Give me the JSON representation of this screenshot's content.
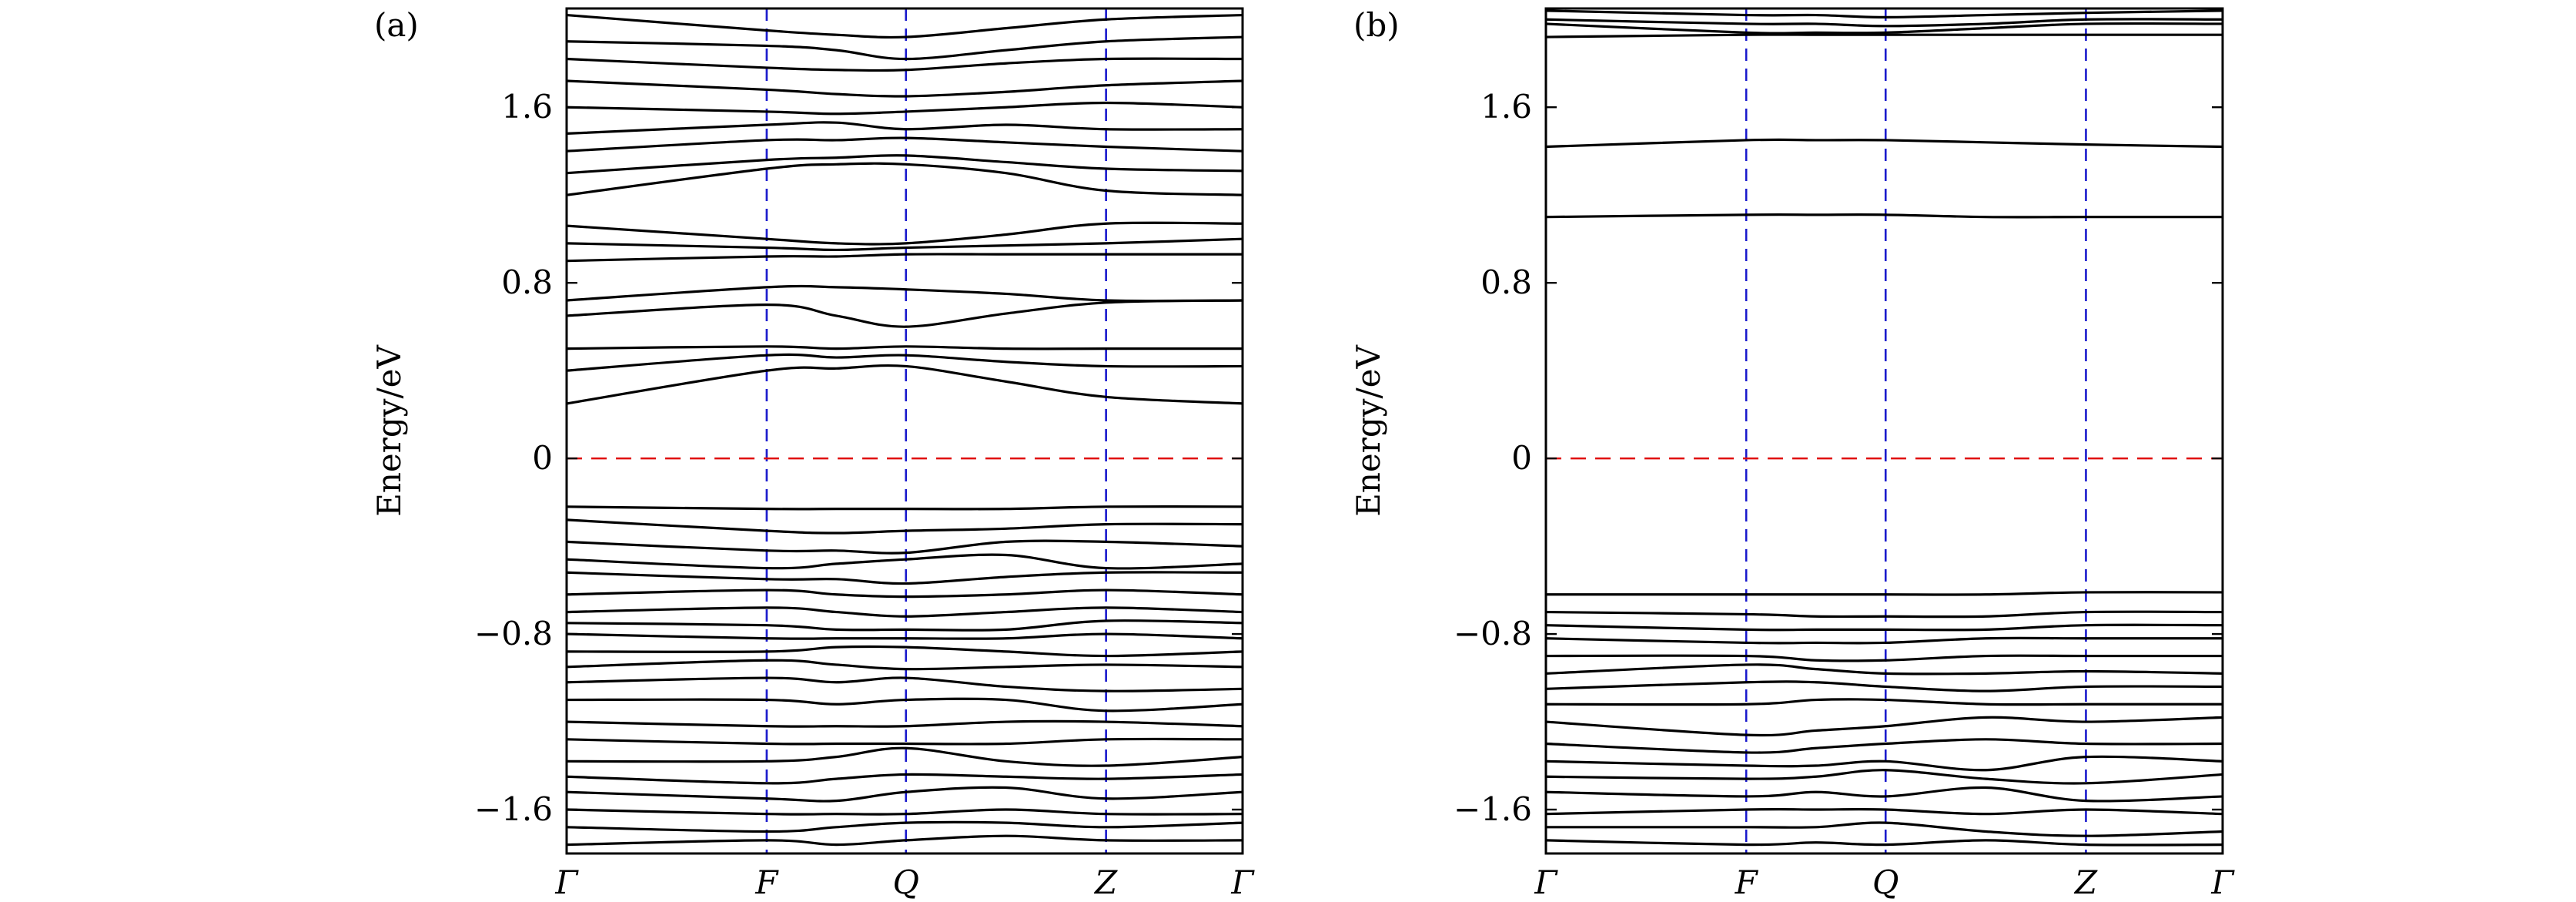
{
  "chart_data": [
    {
      "type": "line",
      "title": "(a)",
      "ylabel": "Energy/eV",
      "color": "#000000",
      "x": [
        0,
        0.296,
        0.399,
        0.502,
        0.65,
        0.798,
        1
      ],
      "xlim": [
        0,
        1
      ],
      "xticks": [
        {
          "value": 0,
          "label": "Γ"
        },
        {
          "value": 0.296,
          "label": "F"
        },
        {
          "value": 0.502,
          "label": "Q"
        },
        {
          "value": 0.798,
          "label": "Z"
        },
        {
          "value": 1,
          "label": "Γ"
        }
      ],
      "ylim": [
        -1.8,
        2.05
      ],
      "yticks": [
        {
          "value": -1.6,
          "label": "−1.6"
        },
        {
          "value": -0.8,
          "label": "−0.8"
        },
        0,
        0.8,
        1.6
      ],
      "vline_color": "#1a1acc",
      "hline": 0,
      "hline_color": "#e01010",
      "series": [
        {
          "values": [
            0.25,
            0.4,
            0.41,
            0.42,
            0.35,
            0.28,
            0.25
          ]
        },
        {
          "values": [
            0.4,
            0.47,
            0.46,
            0.47,
            0.44,
            0.42,
            0.42
          ]
        },
        {
          "values": [
            0.5,
            0.51,
            0.5,
            0.51,
            0.5,
            0.5,
            0.5
          ]
        },
        {
          "values": [
            0.65,
            0.7,
            0.65,
            0.6,
            0.66,
            0.71,
            0.72
          ]
        },
        {
          "values": [
            0.72,
            0.78,
            0.78,
            0.77,
            0.75,
            0.72,
            0.72
          ]
        },
        {
          "values": [
            0.9,
            0.92,
            0.92,
            0.93,
            0.93,
            0.93,
            0.93
          ]
        },
        {
          "values": [
            0.98,
            0.96,
            0.95,
            0.96,
            0.97,
            0.98,
            1.0
          ]
        },
        {
          "values": [
            1.06,
            1.0,
            0.98,
            0.98,
            1.02,
            1.07,
            1.07
          ]
        },
        {
          "values": [
            1.2,
            1.32,
            1.34,
            1.34,
            1.3,
            1.22,
            1.2
          ]
        },
        {
          "values": [
            1.3,
            1.36,
            1.37,
            1.38,
            1.35,
            1.32,
            1.31
          ]
        },
        {
          "values": [
            1.4,
            1.45,
            1.45,
            1.46,
            1.44,
            1.42,
            1.4
          ]
        },
        {
          "values": [
            1.48,
            1.52,
            1.53,
            1.5,
            1.52,
            1.5,
            1.5
          ]
        },
        {
          "values": [
            1.6,
            1.58,
            1.57,
            1.58,
            1.6,
            1.62,
            1.6
          ]
        },
        {
          "values": [
            1.72,
            1.68,
            1.66,
            1.65,
            1.67,
            1.7,
            1.72
          ]
        },
        {
          "values": [
            1.82,
            1.78,
            1.77,
            1.77,
            1.8,
            1.82,
            1.82
          ]
        },
        {
          "values": [
            1.9,
            1.88,
            1.86,
            1.82,
            1.86,
            1.9,
            1.92
          ]
        },
        {
          "values": [
            2.02,
            1.95,
            1.93,
            1.92,
            1.96,
            2.0,
            2.02
          ]
        },
        {
          "values": [
            -0.22,
            -0.23,
            -0.23,
            -0.23,
            -0.23,
            -0.22,
            -0.22
          ]
        },
        {
          "values": [
            -0.28,
            -0.33,
            -0.34,
            -0.33,
            -0.32,
            -0.3,
            -0.3
          ]
        },
        {
          "values": [
            -0.38,
            -0.42,
            -0.42,
            -0.43,
            -0.38,
            -0.38,
            -0.4
          ]
        },
        {
          "values": [
            -0.46,
            -0.5,
            -0.48,
            -0.46,
            -0.44,
            -0.5,
            -0.48
          ]
        },
        {
          "values": [
            -0.52,
            -0.55,
            -0.55,
            -0.57,
            -0.54,
            -0.52,
            -0.52
          ]
        },
        {
          "values": [
            -0.62,
            -0.6,
            -0.62,
            -0.63,
            -0.62,
            -0.6,
            -0.62
          ]
        },
        {
          "values": [
            -0.7,
            -0.68,
            -0.7,
            -0.72,
            -0.7,
            -0.68,
            -0.7
          ]
        },
        {
          "values": [
            -0.75,
            -0.76,
            -0.78,
            -0.78,
            -0.78,
            -0.74,
            -0.75
          ]
        },
        {
          "values": [
            -0.8,
            -0.82,
            -0.82,
            -0.82,
            -0.82,
            -0.8,
            -0.82
          ]
        },
        {
          "values": [
            -0.88,
            -0.88,
            -0.86,
            -0.86,
            -0.88,
            -0.9,
            -0.88
          ]
        },
        {
          "values": [
            -0.95,
            -0.92,
            -0.94,
            -0.96,
            -0.95,
            -0.94,
            -0.95
          ]
        },
        {
          "values": [
            -1.02,
            -1.0,
            -1.02,
            -1.0,
            -1.04,
            -1.06,
            -1.05
          ]
        },
        {
          "values": [
            -1.1,
            -1.1,
            -1.12,
            -1.1,
            -1.1,
            -1.15,
            -1.12
          ]
        },
        {
          "values": [
            -1.2,
            -1.22,
            -1.22,
            -1.22,
            -1.2,
            -1.2,
            -1.22
          ]
        },
        {
          "values": [
            -1.28,
            -1.3,
            -1.3,
            -1.3,
            -1.3,
            -1.28,
            -1.28
          ]
        },
        {
          "values": [
            -1.38,
            -1.38,
            -1.36,
            -1.32,
            -1.38,
            -1.4,
            -1.36
          ]
        },
        {
          "values": [
            -1.45,
            -1.48,
            -1.46,
            -1.44,
            -1.45,
            -1.46,
            -1.44
          ]
        },
        {
          "values": [
            -1.52,
            -1.55,
            -1.56,
            -1.52,
            -1.5,
            -1.55,
            -1.52
          ]
        },
        {
          "values": [
            -1.6,
            -1.62,
            -1.62,
            -1.62,
            -1.6,
            -1.62,
            -1.62
          ]
        },
        {
          "values": [
            -1.68,
            -1.7,
            -1.68,
            -1.66,
            -1.66,
            -1.68,
            -1.66
          ]
        },
        {
          "values": [
            -1.76,
            -1.74,
            -1.76,
            -1.74,
            -1.72,
            -1.74,
            -1.74
          ]
        }
      ]
    },
    {
      "type": "line",
      "title": "(b)",
      "ylabel": "Energy/eV",
      "color": "#000000",
      "x": [
        0,
        0.296,
        0.399,
        0.502,
        0.65,
        0.798,
        1
      ],
      "xlim": [
        0,
        1
      ],
      "xticks": [
        {
          "value": 0,
          "label": "Γ"
        },
        {
          "value": 0.296,
          "label": "F"
        },
        {
          "value": 0.502,
          "label": "Q"
        },
        {
          "value": 0.798,
          "label": "Z"
        },
        {
          "value": 1,
          "label": "Γ"
        }
      ],
      "ylim": [
        -1.8,
        2.05
      ],
      "yticks": [
        {
          "value": -1.6,
          "label": "−1.6"
        },
        {
          "value": -0.8,
          "label": "−0.8"
        },
        0,
        0.8,
        1.6
      ],
      "vline_color": "#1a1acc",
      "hline": 0,
      "hline_color": "#e01010",
      "series": [
        {
          "values": [
            1.1,
            1.11,
            1.11,
            1.11,
            1.1,
            1.1,
            1.1
          ]
        },
        {
          "values": [
            1.42,
            1.45,
            1.45,
            1.45,
            1.44,
            1.43,
            1.42
          ]
        },
        {
          "values": [
            1.92,
            1.93,
            1.93,
            1.93,
            1.93,
            1.93,
            1.93
          ]
        },
        {
          "values": [
            1.98,
            1.94,
            1.94,
            1.94,
            1.96,
            1.98,
            1.98
          ]
        },
        {
          "values": [
            2.0,
            1.98,
            1.98,
            1.97,
            1.98,
            2.0,
            2.0
          ]
        },
        {
          "values": [
            2.04,
            2.02,
            2.02,
            2.01,
            2.02,
            2.03,
            2.04
          ]
        },
        {
          "values": [
            -0.62,
            -0.62,
            -0.62,
            -0.62,
            -0.62,
            -0.61,
            -0.61
          ]
        },
        {
          "values": [
            -0.7,
            -0.71,
            -0.72,
            -0.72,
            -0.72,
            -0.7,
            -0.7
          ]
        },
        {
          "values": [
            -0.76,
            -0.78,
            -0.78,
            -0.78,
            -0.78,
            -0.76,
            -0.76
          ]
        },
        {
          "values": [
            -0.82,
            -0.84,
            -0.84,
            -0.84,
            -0.82,
            -0.82,
            -0.82
          ]
        },
        {
          "values": [
            -0.9,
            -0.9,
            -0.92,
            -0.92,
            -0.9,
            -0.9,
            -0.9
          ]
        },
        {
          "values": [
            -0.98,
            -0.94,
            -0.96,
            -0.98,
            -0.98,
            -0.97,
            -0.98
          ]
        },
        {
          "values": [
            -1.05,
            -1.02,
            -1.02,
            -1.04,
            -1.06,
            -1.04,
            -1.04
          ]
        },
        {
          "values": [
            -1.12,
            -1.12,
            -1.1,
            -1.1,
            -1.12,
            -1.12,
            -1.12
          ]
        },
        {
          "values": [
            -1.2,
            -1.26,
            -1.24,
            -1.22,
            -1.18,
            -1.2,
            -1.18
          ]
        },
        {
          "values": [
            -1.3,
            -1.34,
            -1.32,
            -1.3,
            -1.28,
            -1.3,
            -1.3
          ]
        },
        {
          "values": [
            -1.38,
            -1.4,
            -1.4,
            -1.38,
            -1.42,
            -1.36,
            -1.38
          ]
        },
        {
          "values": [
            -1.45,
            -1.46,
            -1.45,
            -1.42,
            -1.46,
            -1.48,
            -1.44
          ]
        },
        {
          "values": [
            -1.52,
            -1.54,
            -1.52,
            -1.54,
            -1.5,
            -1.56,
            -1.54
          ]
        },
        {
          "values": [
            -1.62,
            -1.6,
            -1.6,
            -1.6,
            -1.62,
            -1.6,
            -1.62
          ]
        },
        {
          "values": [
            -1.68,
            -1.68,
            -1.68,
            -1.66,
            -1.7,
            -1.72,
            -1.7
          ]
        },
        {
          "values": [
            -1.74,
            -1.76,
            -1.75,
            -1.76,
            -1.74,
            -1.76,
            -1.76
          ]
        }
      ]
    }
  ]
}
